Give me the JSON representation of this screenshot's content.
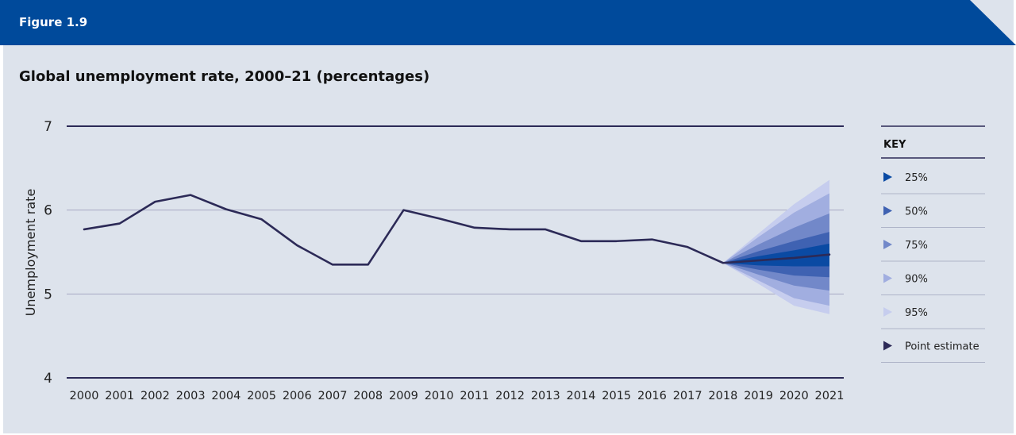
{
  "figure": {
    "label": "Figure 1.9"
  },
  "colors": {
    "banner": "#004a9b",
    "panel": "#dde3ec",
    "line": "#2c2a57",
    "band_25": "#0a4aa3",
    "band_50": "#3f62b2",
    "band_75": "#7288c9",
    "band_90": "#a1aee0",
    "band_95": "#c6cdee"
  },
  "chart_data": {
    "type": "line",
    "title": "Global unemployment rate, 2000–21 (percentages)",
    "xlabel": "",
    "ylabel": "Unemployment rate",
    "ylim": [
      4,
      7
    ],
    "yticks": [
      "4",
      "5",
      "6",
      "7"
    ],
    "categories": [
      "2000",
      "2001",
      "2002",
      "2003",
      "2004",
      "2005",
      "2006",
      "2007",
      "2008",
      "2009",
      "2010",
      "2011",
      "2012",
      "2013",
      "2014",
      "2015",
      "2016",
      "2017",
      "2018",
      "2019",
      "2020",
      "2021"
    ],
    "series": [
      {
        "name": "Point estimate",
        "values": [
          5.77,
          5.84,
          6.1,
          6.18,
          6.01,
          5.89,
          5.58,
          5.35,
          5.35,
          6.0,
          5.9,
          5.79,
          5.77,
          5.77,
          5.63,
          5.63,
          5.65,
          5.56,
          5.37,
          5.4,
          5.43,
          5.47
        ]
      }
    ],
    "projection": {
      "categories": [
        "2018",
        "2019",
        "2020",
        "2021"
      ],
      "bands": [
        {
          "name": "95%",
          "lower": [
            5.37,
            5.12,
            4.86,
            4.76
          ],
          "upper": [
            5.37,
            5.72,
            6.07,
            6.36
          ]
        },
        {
          "name": "90%",
          "lower": [
            5.37,
            5.16,
            4.95,
            4.86
          ],
          "upper": [
            5.37,
            5.68,
            5.97,
            6.2
          ]
        },
        {
          "name": "75%",
          "lower": [
            5.37,
            5.23,
            5.1,
            5.04
          ],
          "upper": [
            5.37,
            5.59,
            5.79,
            5.96
          ]
        },
        {
          "name": "50%",
          "lower": [
            5.37,
            5.29,
            5.22,
            5.2
          ],
          "upper": [
            5.37,
            5.51,
            5.63,
            5.74
          ]
        },
        {
          "name": "25%",
          "lower": [
            5.37,
            5.34,
            5.33,
            5.33
          ],
          "upper": [
            5.37,
            5.45,
            5.52,
            5.6
          ]
        }
      ]
    },
    "legend": {
      "title": "KEY",
      "placement": "right",
      "items": [
        "25%",
        "50%",
        "75%",
        "90%",
        "95%",
        "Point estimate"
      ]
    }
  }
}
